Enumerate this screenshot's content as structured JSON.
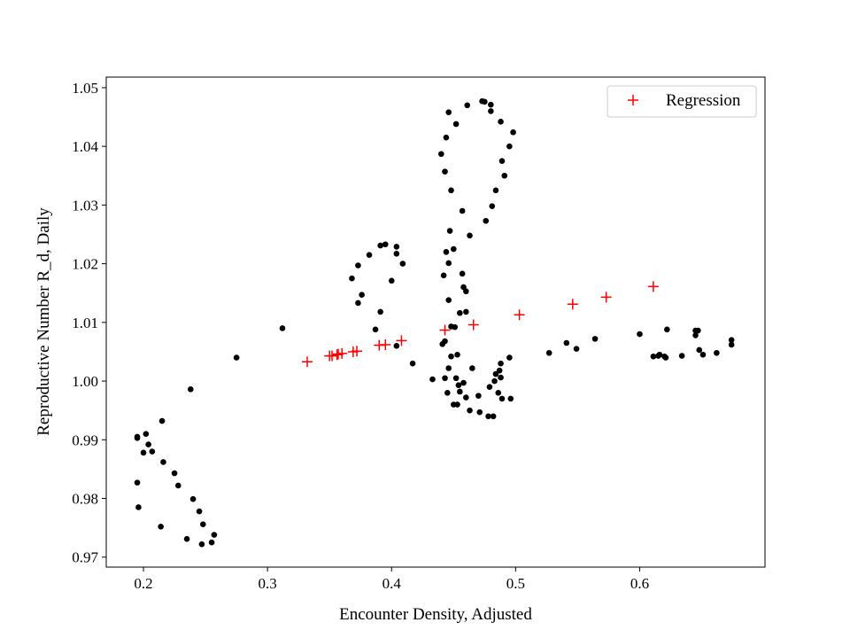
{
  "chart_data": {
    "type": "scatter",
    "xlabel": "Encounter Density, Adjusted",
    "ylabel": "Reproductive Number R_d, Daily",
    "xlim": [
      0.17,
      0.701
    ],
    "ylim": [
      0.9683,
      1.0518
    ],
    "x_ticks": [
      0.2,
      0.3,
      0.4,
      0.5,
      0.6
    ],
    "x_tick_labels": [
      "0.2",
      "0.3",
      "0.4",
      "0.5",
      "0.6"
    ],
    "y_ticks": [
      0.97,
      0.98,
      0.99,
      1.0,
      1.01,
      1.02,
      1.03,
      1.04,
      1.05
    ],
    "y_tick_labels": [
      "0.97",
      "0.98",
      "0.99",
      "1.00",
      "1.01",
      "1.02",
      "1.03",
      "1.04",
      "1.05"
    ],
    "grid": false,
    "legend_position": "top-right",
    "colors": {
      "observed": "#000000",
      "regression": "#ff0000"
    },
    "series": [
      {
        "marker": "dot",
        "points": [
          [
            0.195,
            0.9905
          ],
          [
            0.195,
            0.9903
          ],
          [
            0.202,
            0.991
          ],
          [
            0.204,
            0.9892
          ],
          [
            0.207,
            0.988
          ],
          [
            0.2,
            0.9878
          ],
          [
            0.195,
            0.9827
          ],
          [
            0.196,
            0.9785
          ],
          [
            0.215,
            0.9932
          ],
          [
            0.216,
            0.9862
          ],
          [
            0.225,
            0.9843
          ],
          [
            0.228,
            0.9822
          ],
          [
            0.214,
            0.9752
          ],
          [
            0.235,
            0.9731
          ],
          [
            0.238,
            0.9986
          ],
          [
            0.24,
            0.9799
          ],
          [
            0.245,
            0.9778
          ],
          [
            0.248,
            0.9756
          ],
          [
            0.247,
            0.9722
          ],
          [
            0.255,
            0.9725
          ],
          [
            0.257,
            0.9738
          ],
          [
            0.275,
            1.004
          ],
          [
            0.312,
            1.009
          ],
          [
            0.368,
            1.0175
          ],
          [
            0.373,
            1.0197
          ],
          [
            0.382,
            1.0215
          ],
          [
            0.391,
            1.0231
          ],
          [
            0.395,
            1.0233
          ],
          [
            0.404,
            1.0229
          ],
          [
            0.404,
            1.0217
          ],
          [
            0.409,
            1.02
          ],
          [
            0.4,
            1.0171
          ],
          [
            0.376,
            1.0147
          ],
          [
            0.373,
            1.0133
          ],
          [
            0.391,
            1.0118
          ],
          [
            0.387,
            1.0088
          ],
          [
            0.404,
            1.006
          ],
          [
            0.417,
            1.003
          ],
          [
            0.433,
            1.0003
          ],
          [
            0.443,
            1.0005
          ],
          [
            0.445,
            0.998
          ],
          [
            0.45,
            0.996
          ],
          [
            0.453,
            0.996
          ],
          [
            0.455,
            0.9982
          ],
          [
            0.46,
            0.9972
          ],
          [
            0.463,
            0.995
          ],
          [
            0.47,
            0.9975
          ],
          [
            0.471,
            0.9947
          ],
          [
            0.478,
            0.994
          ],
          [
            0.482,
            0.994
          ],
          [
            0.479,
            0.999
          ],
          [
            0.483,
            1.0
          ],
          [
            0.484,
            1.0012
          ],
          [
            0.487,
            1.0018
          ],
          [
            0.488,
            1.003
          ],
          [
            0.488,
            1.0006
          ],
          [
            0.486,
            0.998
          ],
          [
            0.489,
            0.997
          ],
          [
            0.496,
            0.997
          ],
          [
            0.495,
            1.004
          ],
          [
            0.458,
            0.9997
          ],
          [
            0.454,
            0.9993
          ],
          [
            0.452,
            1.0005
          ],
          [
            0.446,
            1.0022
          ],
          [
            0.448,
            1.0042
          ],
          [
            0.453,
            1.0045
          ],
          [
            0.465,
            1.0022
          ],
          [
            0.441,
            1.0063
          ],
          [
            0.443,
            1.0068
          ],
          [
            0.448,
            1.0093
          ],
          [
            0.451,
            1.0092
          ],
          [
            0.446,
            1.0138
          ],
          [
            0.455,
            1.0116
          ],
          [
            0.46,
            1.0118
          ],
          [
            0.458,
            1.016
          ],
          [
            0.46,
            1.0153
          ],
          [
            0.457,
            1.0183
          ],
          [
            0.446,
            1.0201
          ],
          [
            0.444,
            1.022
          ],
          [
            0.45,
            1.0225
          ],
          [
            0.442,
            1.018
          ],
          [
            0.447,
            1.0256
          ],
          [
            0.463,
            1.0248
          ],
          [
            0.457,
            1.029
          ],
          [
            0.448,
            1.0325
          ],
          [
            0.443,
            1.0357
          ],
          [
            0.44,
            1.0387
          ],
          [
            0.444,
            1.0415
          ],
          [
            0.452,
            1.0438
          ],
          [
            0.446,
            1.0458
          ],
          [
            0.461,
            1.047
          ],
          [
            0.473,
            1.0477
          ],
          [
            0.475,
            1.0476
          ],
          [
            0.48,
            1.0471
          ],
          [
            0.48,
            1.046
          ],
          [
            0.488,
            1.0442
          ],
          [
            0.498,
            1.0424
          ],
          [
            0.495,
            1.04
          ],
          [
            0.489,
            1.0375
          ],
          [
            0.491,
            1.035
          ],
          [
            0.484,
            1.0325
          ],
          [
            0.481,
            1.0298
          ],
          [
            0.476,
            1.0273
          ],
          [
            0.527,
            1.0048
          ],
          [
            0.541,
            1.0065
          ],
          [
            0.549,
            1.0055
          ],
          [
            0.564,
            1.0072
          ],
          [
            0.6,
            1.008
          ],
          [
            0.611,
            1.0042
          ],
          [
            0.615,
            1.0043
          ],
          [
            0.616,
            1.0045
          ],
          [
            0.62,
            1.0042
          ],
          [
            0.621,
            1.004
          ],
          [
            0.622,
            1.0088
          ],
          [
            0.634,
            1.0043
          ],
          [
            0.645,
            1.0086
          ],
          [
            0.645,
            1.0078
          ],
          [
            0.647,
            1.0086
          ],
          [
            0.648,
            1.0053
          ],
          [
            0.651,
            1.0045
          ],
          [
            0.662,
            1.0048
          ],
          [
            0.674,
            1.007
          ],
          [
            0.674,
            1.0062
          ]
        ]
      },
      {
        "name": "Regression",
        "marker": "plus",
        "points": [
          [
            0.332,
            1.0033
          ],
          [
            0.35,
            1.0043
          ],
          [
            0.352,
            1.0043
          ],
          [
            0.356,
            1.0045
          ],
          [
            0.357,
            1.0046
          ],
          [
            0.36,
            1.0047
          ],
          [
            0.369,
            1.005
          ],
          [
            0.372,
            1.0051
          ],
          [
            0.39,
            1.0061
          ],
          [
            0.395,
            1.0062
          ],
          [
            0.408,
            1.0069
          ],
          [
            0.443,
            1.0087
          ],
          [
            0.466,
            1.0096
          ],
          [
            0.503,
            1.0113
          ],
          [
            0.546,
            1.0131
          ],
          [
            0.573,
            1.0143
          ],
          [
            0.611,
            1.0161
          ]
        ]
      }
    ]
  }
}
